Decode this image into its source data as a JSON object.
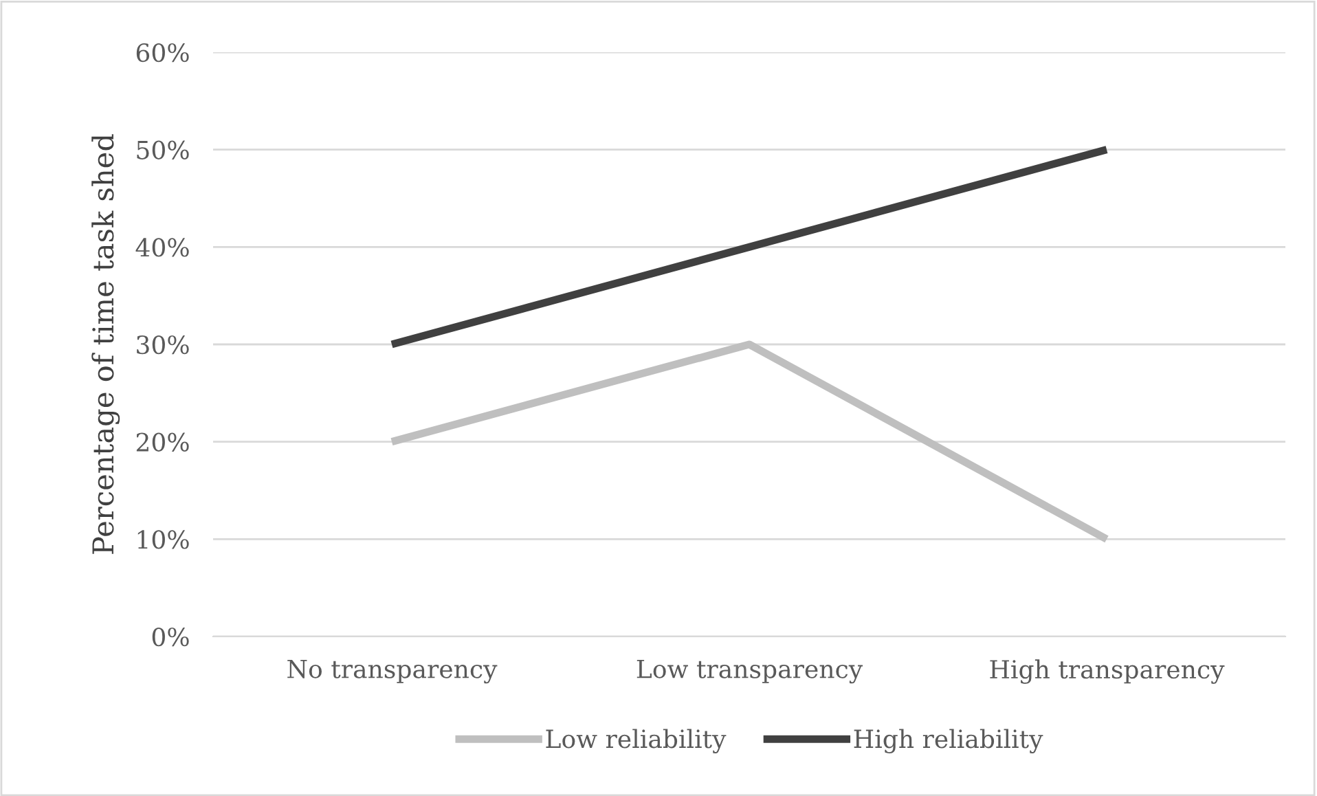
{
  "chart_data": {
    "type": "line",
    "ylabel": "Percentage of time task shed",
    "categories": [
      "No transparency",
      "Low transparency",
      "High transparency"
    ],
    "series": [
      {
        "name": "Low reliability",
        "color": "#bfbfbf",
        "values": [
          20,
          30,
          10
        ]
      },
      {
        "name": "High reliability",
        "color": "#404040",
        "values": [
          30,
          40,
          50
        ]
      }
    ],
    "ylim": [
      0,
      60
    ],
    "yticks": [
      {
        "value": 0,
        "label": "0%"
      },
      {
        "value": 10,
        "label": "10%"
      },
      {
        "value": 20,
        "label": "20%"
      },
      {
        "value": 30,
        "label": "30%"
      },
      {
        "value": 40,
        "label": "40%"
      },
      {
        "value": 50,
        "label": "50%"
      },
      {
        "value": 60,
        "label": "60%"
      }
    ],
    "grid": "y",
    "legend": "bottom",
    "marker": "none",
    "line_style": "solid"
  }
}
